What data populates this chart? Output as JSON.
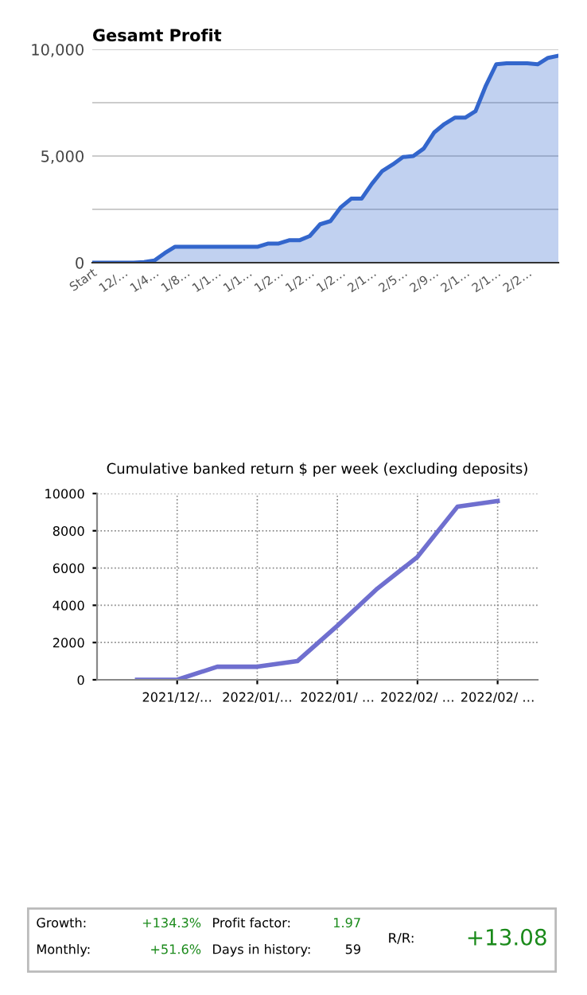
{
  "chart_data": [
    {
      "type": "area",
      "title": "Gesamt Profit",
      "categories": [
        "Start",
        null,
        null,
        "12/…",
        null,
        null,
        "1/4…",
        null,
        null,
        "1/8…",
        null,
        null,
        "1/1…",
        null,
        null,
        "1/1…",
        null,
        null,
        "1/2…",
        null,
        null,
        "1/2…",
        null,
        null,
        "1/2…",
        null,
        null,
        "2/1…",
        null,
        null,
        "2/5…",
        null,
        null,
        "2/9…",
        null,
        null,
        "2/1…",
        null,
        null,
        "2/1…",
        null,
        null,
        "2/2…",
        null,
        null,
        null
      ],
      "values": [
        0,
        0,
        0,
        0,
        0,
        30,
        100,
        450,
        750,
        750,
        750,
        750,
        750,
        750,
        750,
        750,
        750,
        900,
        900,
        1050,
        1050,
        1250,
        1800,
        1950,
        2600,
        3000,
        3000,
        3700,
        4300,
        4600,
        4950,
        5000,
        5350,
        6100,
        6500,
        6800,
        6800,
        7100,
        8300,
        9300,
        9350,
        9350,
        9350,
        9300,
        9600,
        9700
      ],
      "color": "#3366cc",
      "ylim": [
        0,
        10000
      ],
      "yticks": [
        0,
        {
          "value": 2500,
          "label": null
        },
        {
          "value": 5000,
          "label": "5,000"
        },
        {
          "value": 7500,
          "label": null
        },
        {
          "value": 10000,
          "label": "10,000"
        }
      ],
      "grid": "y",
      "marker": "none",
      "line_style": "solid"
    },
    {
      "type": "line",
      "title": "Cumulative banked return $ per week (excluding deposits)",
      "categories": [
        null,
        "2021/12/…",
        null,
        "2022/01/…",
        null,
        "2022/01/ …",
        null,
        "2022/02/ …",
        null,
        "2022/02/ …"
      ],
      "values": [
        0,
        0,
        700,
        700,
        1000,
        2900,
        4900,
        6600,
        9300,
        9600
      ],
      "color": "#6f6fcf",
      "ylim": [
        0,
        10000
      ],
      "yticks": [
        0,
        2000,
        4000,
        6000,
        8000,
        10000
      ],
      "grid": true,
      "marker": "none",
      "line_style": "solid"
    },
    {
      "type": "other",
      "annotations": [
        "Growth:",
        "+134.3%",
        "Monthly:",
        "+51.6%",
        "Profit factor:",
        "1.97",
        "Days in history:",
        "59",
        "R/R:",
        "+13.08"
      ]
    }
  ]
}
